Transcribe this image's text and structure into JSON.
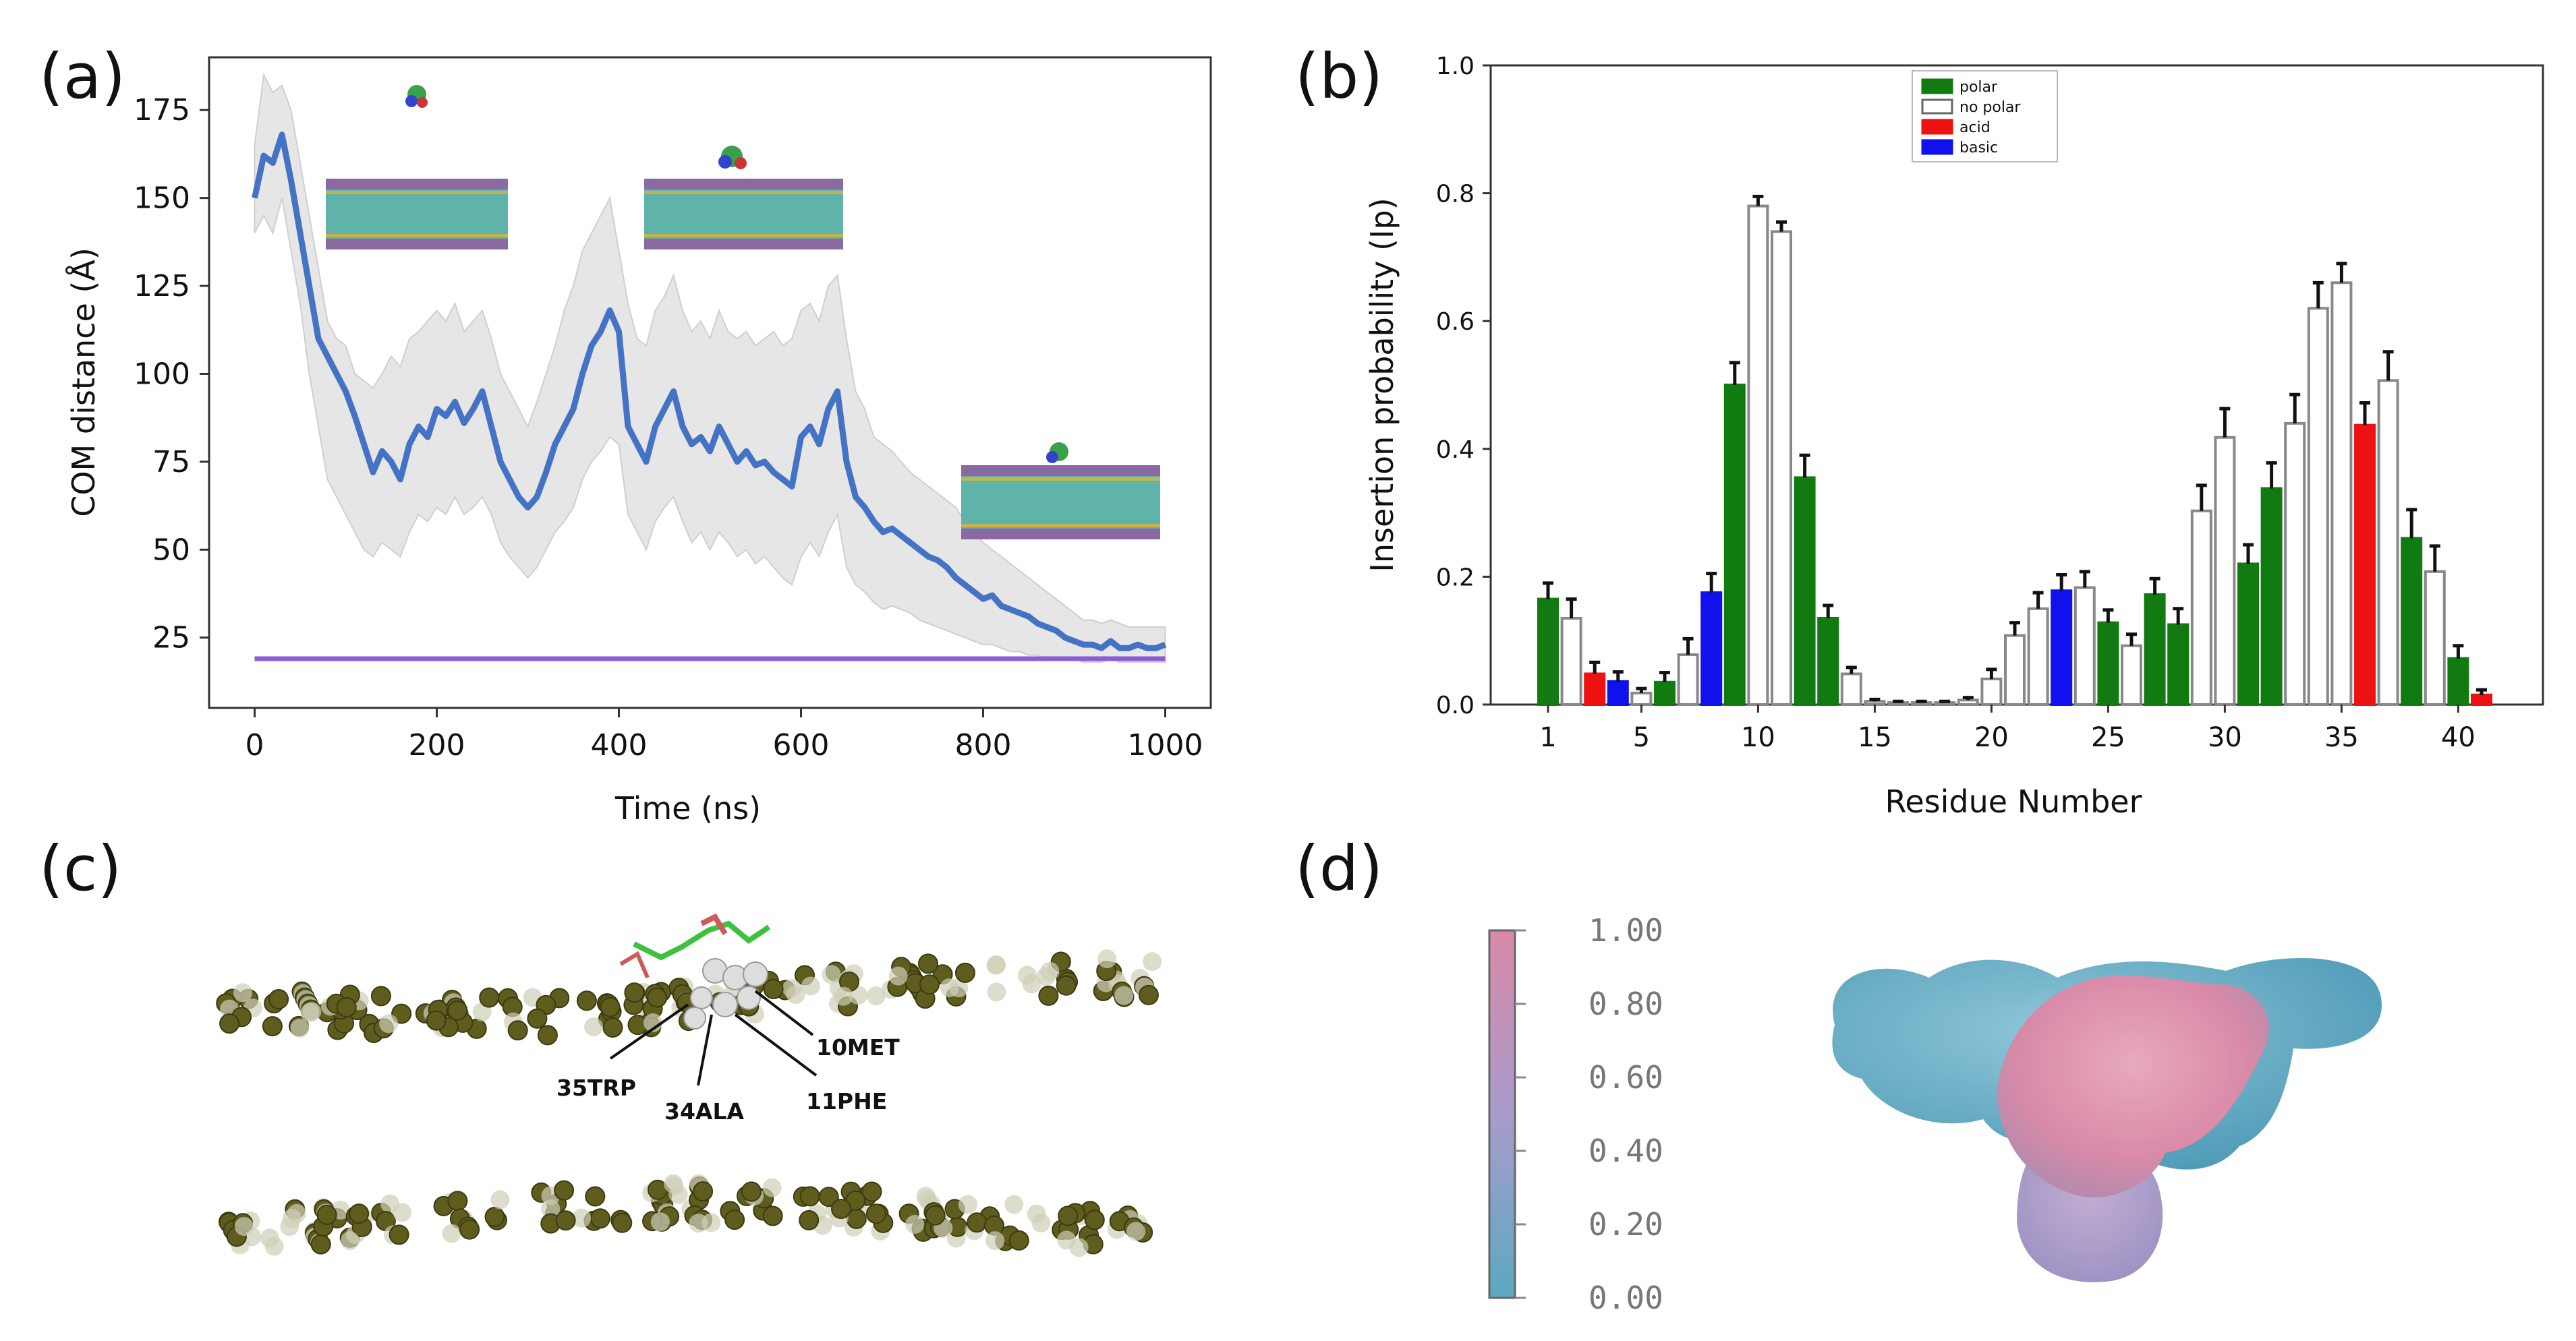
{
  "panels": {
    "a": {
      "letter": "(a)",
      "insets": [
        "membrane-1",
        "membrane-2",
        "membrane-3"
      ]
    },
    "b": {
      "letter": "(b)"
    },
    "c": {
      "letter": "(c)",
      "labels": [
        "35TRP",
        "34ALA",
        "11PHE",
        "10MET"
      ]
    },
    "d": {
      "letter": "(d)",
      "colorbar_ticks": [
        "1.00",
        "0.80",
        "0.60",
        "0.40",
        "0.20",
        "0.00"
      ],
      "colors": {
        "low": "#5aa9c2",
        "mid": "#a99bcc",
        "high": "#d98aa8"
      }
    }
  },
  "chart_data": [
    {
      "type": "line",
      "panel": "a",
      "title": "",
      "xlabel": "Time (ns)",
      "ylabel": "COM distance (Å)",
      "xlim": [
        -50,
        1050
      ],
      "ylim": [
        5,
        190
      ],
      "xticks": [
        0,
        200,
        400,
        600,
        800,
        1000
      ],
      "yticks": [
        25,
        50,
        75,
        100,
        125,
        150,
        175
      ],
      "series": [
        {
          "name": "COM distance",
          "color": "#4472c4",
          "x": [
            0,
            10,
            20,
            30,
            40,
            50,
            60,
            70,
            80,
            90,
            100,
            110,
            120,
            130,
            140,
            150,
            160,
            170,
            180,
            190,
            200,
            210,
            220,
            230,
            240,
            250,
            260,
            270,
            280,
            290,
            300,
            310,
            320,
            330,
            340,
            350,
            360,
            370,
            380,
            390,
            400,
            410,
            420,
            430,
            440,
            450,
            460,
            470,
            480,
            490,
            500,
            510,
            520,
            530,
            540,
            550,
            560,
            570,
            580,
            590,
            600,
            610,
            620,
            630,
            640,
            650,
            660,
            670,
            680,
            690,
            700,
            710,
            720,
            730,
            740,
            750,
            760,
            770,
            780,
            790,
            800,
            810,
            820,
            830,
            840,
            850,
            860,
            870,
            880,
            890,
            900,
            910,
            920,
            930,
            940,
            950,
            960,
            970,
            980,
            990,
            1000
          ],
          "y": [
            150,
            162,
            160,
            168,
            155,
            140,
            125,
            110,
            105,
            100,
            95,
            88,
            80,
            72,
            78,
            75,
            70,
            80,
            85,
            82,
            90,
            88,
            92,
            86,
            90,
            95,
            85,
            75,
            70,
            65,
            62,
            65,
            72,
            80,
            85,
            90,
            100,
            108,
            112,
            118,
            112,
            85,
            80,
            75,
            85,
            90,
            95,
            85,
            80,
            82,
            78,
            85,
            80,
            75,
            78,
            74,
            75,
            72,
            70,
            68,
            82,
            85,
            80,
            90,
            95,
            75,
            65,
            62,
            58,
            55,
            56,
            54,
            52,
            50,
            48,
            47,
            45,
            42,
            40,
            38,
            36,
            37,
            34,
            33,
            32,
            31,
            29,
            28,
            27,
            25,
            24,
            23,
            23,
            22,
            24,
            22,
            22,
            23,
            22,
            22,
            23
          ]
        },
        {
          "name": "range",
          "color": "#d9d9d9",
          "upper": [
            165,
            185,
            180,
            182,
            175,
            160,
            145,
            130,
            115,
            110,
            108,
            100,
            98,
            96,
            100,
            105,
            102,
            110,
            112,
            115,
            118,
            115,
            120,
            112,
            115,
            118,
            110,
            100,
            95,
            90,
            85,
            92,
            100,
            108,
            118,
            125,
            135,
            140,
            145,
            150,
            135,
            120,
            110,
            108,
            118,
            122,
            128,
            118,
            112,
            115,
            110,
            118,
            112,
            110,
            112,
            108,
            110,
            112,
            108,
            110,
            118,
            120,
            115,
            125,
            128,
            110,
            95,
            90,
            82,
            80,
            78,
            75,
            72,
            70,
            68,
            66,
            64,
            62,
            58,
            55,
            52,
            50,
            48,
            46,
            44,
            42,
            40,
            38,
            36,
            34,
            32,
            30,
            30,
            29,
            30,
            29,
            28,
            28,
            28,
            28,
            28
          ],
          "lower": [
            140,
            145,
            140,
            150,
            135,
            120,
            100,
            85,
            70,
            65,
            60,
            55,
            50,
            48,
            52,
            50,
            48,
            55,
            60,
            58,
            62,
            60,
            65,
            60,
            62,
            65,
            60,
            52,
            48,
            45,
            42,
            45,
            50,
            55,
            58,
            62,
            70,
            75,
            78,
            82,
            80,
            60,
            55,
            50,
            58,
            62,
            65,
            58,
            52,
            55,
            50,
            55,
            52,
            48,
            50,
            46,
            48,
            45,
            42,
            40,
            48,
            52,
            48,
            55,
            60,
            45,
            40,
            38,
            35,
            33,
            34,
            33,
            32,
            30,
            29,
            28,
            27,
            26,
            25,
            24,
            23,
            23,
            22,
            21,
            21,
            20,
            20,
            19,
            19,
            19,
            19,
            18,
            18,
            18,
            19,
            18,
            18,
            18,
            18,
            18,
            18
          ]
        },
        {
          "name": "baseline",
          "color": "#8a5cd6",
          "x": [
            0,
            1000
          ],
          "y": [
            19,
            19
          ]
        }
      ]
    },
    {
      "type": "bar",
      "panel": "b",
      "title": "",
      "xlabel": "Residue Number",
      "ylabel": "Insertion probability (Ip)",
      "ylim": [
        0,
        1.0
      ],
      "yticks": [
        "0.0",
        "0.2",
        "0.4",
        "0.6",
        "0.8",
        "1.0"
      ],
      "xticks": [
        1,
        5,
        10,
        15,
        20,
        25,
        30,
        35,
        40
      ],
      "legend": {
        "placement": "top-center",
        "entries": [
          {
            "label": "polar",
            "color": "#117a11"
          },
          {
            "label": "no polar",
            "color": "#ffffff"
          },
          {
            "label": "acid",
            "color": "#ee1111"
          },
          {
            "label": "basic",
            "color": "#1111ee"
          }
        ]
      },
      "residues": [
        1,
        2,
        3,
        4,
        5,
        6,
        7,
        8,
        9,
        10,
        11,
        12,
        13,
        14,
        15,
        16,
        17,
        18,
        19,
        20,
        21,
        22,
        23,
        24,
        25,
        26,
        27,
        28,
        29,
        30,
        31,
        32,
        33,
        34,
        35,
        36,
        37,
        38,
        39,
        40,
        41
      ],
      "categories": [
        "polar",
        "no polar",
        "acid",
        "basic",
        "no polar",
        "polar",
        "no polar",
        "basic",
        "polar",
        "no polar",
        "no polar",
        "polar",
        "polar",
        "no polar",
        "no polar",
        "no polar",
        "no polar",
        "no polar",
        "no polar",
        "no polar",
        "no polar",
        "no polar",
        "basic",
        "no polar",
        "polar",
        "no polar",
        "polar",
        "polar",
        "no polar",
        "no polar",
        "polar",
        "polar",
        "no polar",
        "no polar",
        "no polar",
        "acid",
        "no polar",
        "polar",
        "no polar",
        "polar",
        "acid"
      ],
      "values": [
        0.165,
        0.135,
        0.048,
        0.036,
        0.018,
        0.035,
        0.078,
        0.175,
        0.5,
        0.78,
        0.74,
        0.355,
        0.135,
        0.048,
        0.005,
        0.003,
        0.003,
        0.003,
        0.007,
        0.04,
        0.108,
        0.15,
        0.178,
        0.183,
        0.128,
        0.092,
        0.172,
        0.125,
        0.303,
        0.418,
        0.22,
        0.338,
        0.44,
        0.62,
        0.66,
        0.437,
        0.507,
        0.26,
        0.208,
        0.072,
        0.015
      ],
      "errors": [
        0.025,
        0.03,
        0.018,
        0.015,
        0.007,
        0.015,
        0.025,
        0.03,
        0.035,
        0.015,
        0.015,
        0.035,
        0.02,
        0.01,
        0.003,
        0.002,
        0.002,
        0.002,
        0.004,
        0.015,
        0.02,
        0.025,
        0.025,
        0.025,
        0.02,
        0.018,
        0.025,
        0.025,
        0.04,
        0.045,
        0.03,
        0.04,
        0.045,
        0.04,
        0.03,
        0.035,
        0.045,
        0.045,
        0.04,
        0.02,
        0.008
      ]
    }
  ]
}
